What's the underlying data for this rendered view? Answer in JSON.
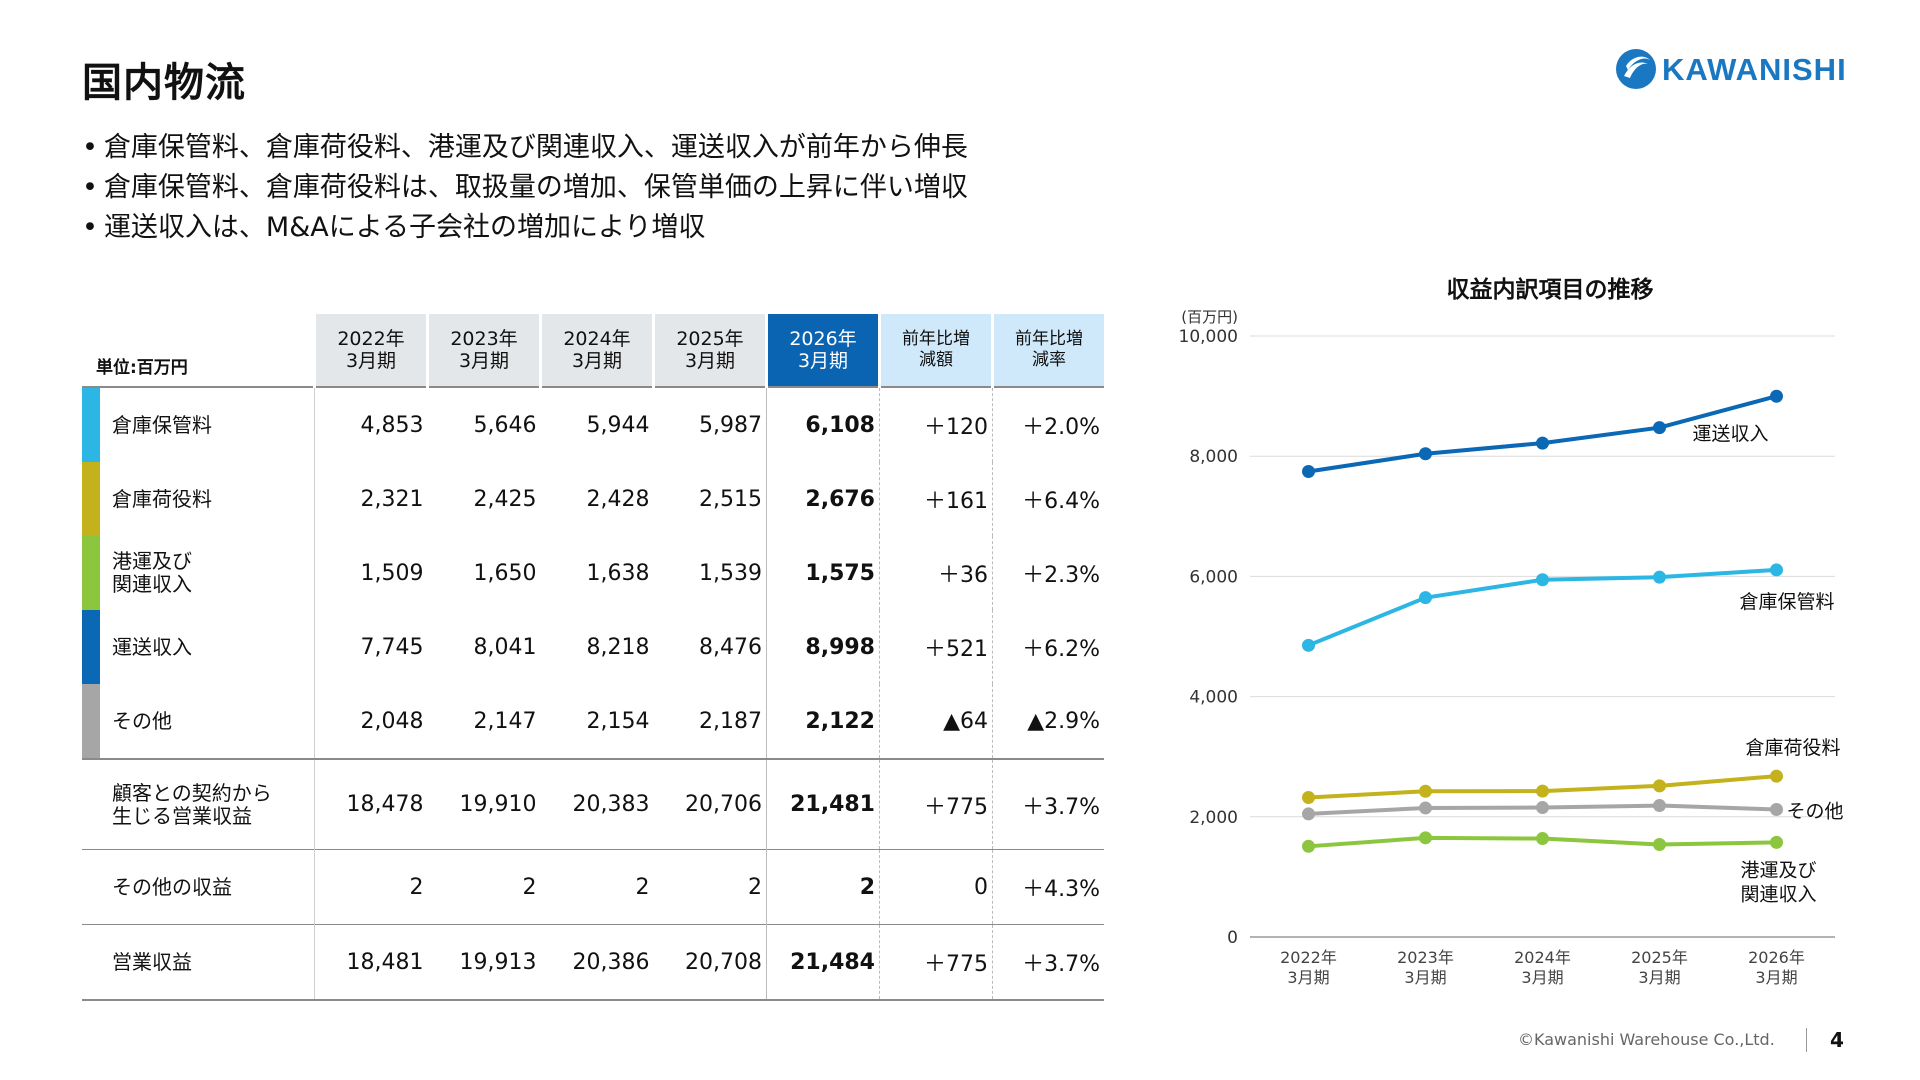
{
  "page": {
    "title": "国内物流",
    "bullets": [
      "倉庫保管料、倉庫荷役料、港運及び関連収入、運送収入が前年から伸長",
      "倉庫保管料、倉庫荷役料は、取扱量の増加、保管単価の上昇に伴い増収",
      "運送収入は、M&Aによる子会社の増加により増収"
    ],
    "logo_text": "KAWANISHI",
    "copyright": "©Kawanishi Warehouse Co.,Ltd.",
    "page_number": "4"
  },
  "table": {
    "unit": "単位:百万円",
    "years": [
      {
        "line1": "2022年",
        "line2": "3月期"
      },
      {
        "line1": "2023年",
        "line2": "3月期"
      },
      {
        "line1": "2024年",
        "line2": "3月期"
      },
      {
        "line1": "2025年",
        "line2": "3月期"
      },
      {
        "line1": "2026年",
        "line2": "3月期"
      }
    ],
    "diff_header": {
      "line1": "前年比増",
      "line2": "減額"
    },
    "rate_header": {
      "line1": "前年比増",
      "line2": "減率"
    },
    "rows": [
      {
        "label1": "倉庫保管料",
        "label2": "",
        "color": "#2cb6e4",
        "values": [
          "4,853",
          "5,646",
          "5,944",
          "5,987",
          "6,108"
        ],
        "diff": "＋120",
        "rate": "＋2.0%"
      },
      {
        "label1": "倉庫荷役料",
        "label2": "",
        "color": "#c3b21c",
        "values": [
          "2,321",
          "2,425",
          "2,428",
          "2,515",
          "2,676"
        ],
        "diff": "＋161",
        "rate": "＋6.4%"
      },
      {
        "label1": "港運及び",
        "label2": "関連収入",
        "color": "#8cc63f",
        "values": [
          "1,509",
          "1,650",
          "1,638",
          "1,539",
          "1,575"
        ],
        "diff": "＋36",
        "rate": "＋2.3%"
      },
      {
        "label1": "運送収入",
        "label2": "",
        "color": "#0a68b4",
        "values": [
          "7,745",
          "8,041",
          "8,218",
          "8,476",
          "8,998"
        ],
        "diff": "＋521",
        "rate": "＋6.2%"
      },
      {
        "label1": "その他",
        "label2": "",
        "color": "#a6a6a6",
        "values": [
          "2,048",
          "2,147",
          "2,154",
          "2,187",
          "2,122"
        ],
        "diff": "▲64",
        "rate": "▲2.9%"
      }
    ],
    "subtotal": {
      "label1": "顧客との契約から",
      "label2": "生じる営業収益",
      "values": [
        "18,478",
        "19,910",
        "20,383",
        "20,706",
        "21,481"
      ],
      "diff": "＋775",
      "rate": "＋3.7%"
    },
    "other_income": {
      "label1": "その他の収益",
      "values": [
        "2",
        "2",
        "2",
        "2",
        "2"
      ],
      "diff": "0",
      "rate": "＋4.3%"
    },
    "total": {
      "label1": "営業収益",
      "values": [
        "18,481",
        "19,913",
        "20,386",
        "20,708",
        "21,484"
      ],
      "diff": "＋775",
      "rate": "＋3.7%"
    }
  },
  "chart_data": {
    "type": "line",
    "title": "収益内訳項目の推移",
    "ylabel": "(百万円)",
    "ylim": [
      0,
      10000
    ],
    "yticks": [
      0,
      2000,
      4000,
      6000,
      8000,
      10000
    ],
    "ytick_labels": [
      "0",
      "2,000",
      "4,000",
      "6,000",
      "8,000",
      "10,000"
    ],
    "categories": [
      {
        "line1": "2022年",
        "line2": "3月期"
      },
      {
        "line1": "2023年",
        "line2": "3月期"
      },
      {
        "line1": "2024年",
        "line2": "3月期"
      },
      {
        "line1": "2025年",
        "line2": "3月期"
      },
      {
        "line1": "2026年",
        "line2": "3月期"
      }
    ],
    "grid": true,
    "series": [
      {
        "name": "運送収入",
        "color": "#0a68b4",
        "values": [
          7745,
          8041,
          8218,
          8476,
          8998
        ]
      },
      {
        "name": "倉庫保管料",
        "color": "#2cb6e4",
        "values": [
          4853,
          5646,
          5944,
          5987,
          6108
        ]
      },
      {
        "name": "倉庫荷役料",
        "color": "#c3b21c",
        "values": [
          2321,
          2425,
          2428,
          2515,
          2676
        ]
      },
      {
        "name": "その他",
        "color": "#a6a6a6",
        "values": [
          2048,
          2147,
          2154,
          2187,
          2122
        ]
      },
      {
        "name": "港運及び\n関連収入",
        "color": "#8cc63f",
        "values": [
          1509,
          1650,
          1638,
          1539,
          1575
        ]
      }
    ]
  }
}
